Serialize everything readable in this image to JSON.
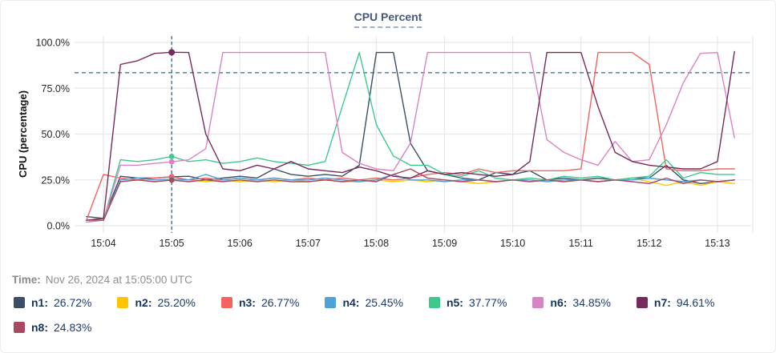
{
  "title": "CPU Percent",
  "time_note": {
    "label": "Time:",
    "value": "Nov 26, 2024 at 15:05:00 UTC"
  },
  "chart_data": {
    "type": "line",
    "title": "CPU Percent",
    "xlabel": "",
    "ylabel": "CPU (percentage)",
    "ylim": [
      0,
      100
    ],
    "grid": true,
    "y_ticks": [
      {
        "label": "0.0%",
        "value": 0
      },
      {
        "label": "25.0%",
        "value": 25
      },
      {
        "label": "50.0%",
        "value": 50
      },
      {
        "label": "75.0%",
        "value": 75
      },
      {
        "label": "100.0%",
        "value": 100
      }
    ],
    "x_ticks": [
      "15:04",
      "15:05",
      "15:06",
      "15:07",
      "15:08",
      "15:09",
      "15:10",
      "15:11",
      "15:12",
      "15:13"
    ],
    "x_start": "15:03:45",
    "x_step_seconds": 15,
    "threshold_pct": 83.5,
    "crosshair": {
      "time": "15:05:00",
      "index": 5,
      "color": "#4e7186"
    },
    "legend_position": "bottom",
    "series": [
      {
        "name": "n1",
        "label": "n1:",
        "value_label": "26.72%",
        "value_at_crosshair": 26.72,
        "color": "#3d4f66",
        "values": [
          5,
          4,
          27,
          26,
          26,
          26.72,
          27,
          25,
          26,
          27,
          26,
          31,
          28,
          27,
          28,
          27,
          33,
          94.5,
          94.5,
          45,
          30,
          28,
          26,
          25,
          29,
          28,
          30,
          25,
          26,
          25,
          26,
          25,
          26,
          26,
          33,
          25,
          23,
          24,
          25
        ]
      },
      {
        "name": "n2",
        "label": "n2:",
        "value_label": "25.20%",
        "value_at_crosshair": 25.2,
        "color": "#fdc500",
        "values": [
          3,
          4,
          24,
          25,
          24,
          25.2,
          25,
          24,
          25,
          24,
          25,
          24,
          25,
          24,
          25,
          24,
          24,
          25,
          24,
          25,
          24,
          25,
          24,
          23,
          24,
          25,
          24,
          25,
          24,
          25,
          24,
          25,
          26,
          24,
          22,
          24,
          22,
          24,
          23
        ]
      },
      {
        "name": "n3",
        "label": "n3:",
        "value_label": "26.77%",
        "value_at_crosshair": 26.77,
        "color": "#f4635e",
        "values": [
          3,
          28,
          26,
          25,
          26,
          26.77,
          25,
          26,
          25,
          26,
          25,
          26,
          25,
          26,
          25,
          26,
          25,
          26,
          25,
          26,
          28,
          29,
          28,
          31,
          29,
          30,
          30,
          30,
          30,
          31,
          94.5,
          94.5,
          94.5,
          88,
          31,
          30,
          30,
          31,
          31
        ]
      },
      {
        "name": "n4",
        "label": "n4:",
        "value_label": "25.45%",
        "value_at_crosshair": 25.45,
        "color": "#4ba3d8",
        "values": [
          3,
          3,
          25,
          26,
          25,
          25.45,
          25,
          28,
          25,
          26,
          25,
          26,
          25,
          25,
          26,
          25,
          24,
          25,
          28,
          25,
          25,
          24,
          25,
          25,
          24,
          25,
          25,
          24,
          25,
          25,
          24,
          25,
          25,
          26,
          25,
          24,
          25,
          24,
          25
        ]
      },
      {
        "name": "n5",
        "label": "n5:",
        "value_label": "37.77%",
        "value_at_crosshair": 37.77,
        "color": "#3ec98c",
        "values": [
          2,
          3,
          36,
          35,
          36,
          37.77,
          35,
          36,
          34,
          35,
          37,
          35,
          34,
          33,
          35,
          65,
          94.5,
          55,
          38,
          33,
          33,
          28,
          27,
          30,
          26,
          25,
          26,
          25,
          27,
          26,
          27,
          25,
          26,
          27,
          36,
          26,
          29,
          28,
          28
        ]
      },
      {
        "name": "n6",
        "label": "n6:",
        "value_label": "34.85%",
        "value_at_crosshair": 34.85,
        "color": "#d983c4",
        "values": [
          2,
          3,
          33,
          33,
          34,
          34.85,
          36,
          42,
          94.5,
          94.5,
          94.5,
          94.5,
          94.5,
          94.5,
          94.5,
          40,
          34,
          31,
          30,
          45,
          94.5,
          94.5,
          94.5,
          94.5,
          94.5,
          94.5,
          94.5,
          47,
          40,
          36,
          33,
          46,
          35,
          36,
          55,
          78,
          94,
          94.5,
          48
        ]
      },
      {
        "name": "n7",
        "label": "n7:",
        "value_label": "94.61%",
        "value_at_crosshair": 94.61,
        "color": "#772a5c",
        "values": [
          3,
          4,
          88,
          90,
          94,
          94.61,
          94.5,
          50,
          31,
          30,
          33,
          31,
          35,
          31,
          30,
          29,
          32,
          30,
          27,
          26,
          30,
          28,
          29,
          28,
          27,
          28,
          35,
          94.5,
          94.5,
          94.5,
          65,
          40,
          35,
          33,
          32,
          31,
          31,
          35,
          95
        ]
      },
      {
        "name": "n8",
        "label": "n8:",
        "value_label": "24.83%",
        "value_at_crosshair": 24.83,
        "color": "#a94a63",
        "values": [
          3,
          3,
          24,
          25,
          24,
          24.83,
          24,
          25,
          24,
          25,
          24,
          25,
          24,
          24,
          25,
          24,
          25,
          24,
          28,
          31,
          26,
          25,
          24,
          25,
          24,
          25,
          24,
          25,
          24,
          25,
          24,
          25,
          24,
          23,
          26,
          23,
          25,
          24,
          25
        ]
      }
    ]
  },
  "style": {
    "grid_color": "#e8e8e8",
    "tick_text_color": "#262626",
    "axis_title_color": "#111111",
    "guide_color": "#4e7186"
  }
}
